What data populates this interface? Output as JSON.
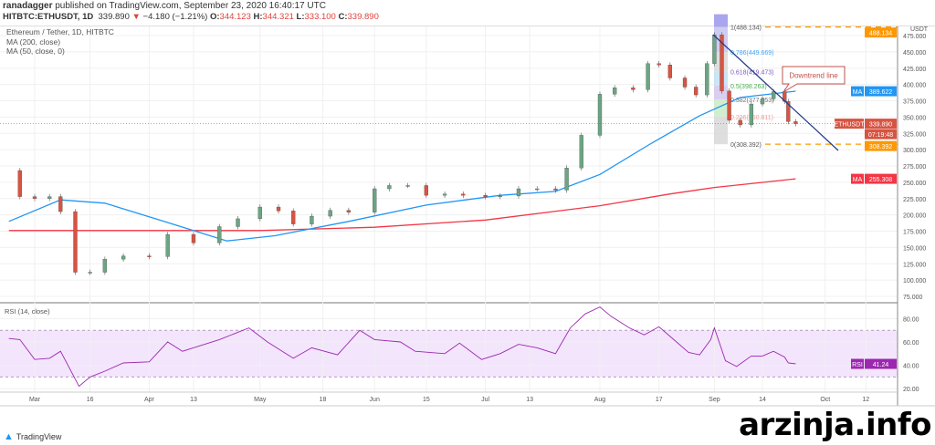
{
  "header": {
    "author": "ranadagger",
    "published_text": "published on TradingView.com, September 23, 2020 16:40:17 UTC",
    "symbol": "HITBTC:ETHUSDT, 1D",
    "last": "339.890",
    "change": "−4.180 (−1.21%)",
    "o_label": "O:",
    "o": "344.123",
    "h_label": "H:",
    "h": "344.321",
    "l_label": "L:",
    "l": "333.100",
    "c_label": "C:",
    "c": "339.890"
  },
  "legend": [
    "Ethereum / Tether, 1D, HITBTC",
    "MA (200, close)",
    "MA (50, close, 0)"
  ],
  "rsi_legend": "RSI (14, close)",
  "footer": {
    "brand": "TradingView",
    "watermark": "arzinja.info"
  },
  "colors": {
    "up": "#6ba583",
    "down": "#d75442",
    "ma50": "#2196f3",
    "ma200": "#f23645",
    "rsi": "#9c27b0",
    "fib_dash": "#ff9800",
    "trend": "#1e3a8a"
  },
  "chart_data": [
    {
      "type": "candlestick",
      "title": "Ethereum / Tether, 1D, HITBTC",
      "unit": "USDT",
      "ylim": [
        75,
        500
      ],
      "y_ticks": [
        75,
        100,
        125,
        150,
        175,
        200,
        225,
        250,
        275,
        300,
        325,
        350,
        375,
        400,
        425,
        450,
        475
      ],
      "x_ticks": [
        {
          "label": "Mar",
          "date": "2020-03-01"
        },
        {
          "label": "16",
          "date": "2020-03-16"
        },
        {
          "label": "Apr",
          "date": "2020-04-01"
        },
        {
          "label": "13",
          "date": "2020-04-13"
        },
        {
          "label": "May",
          "date": "2020-05-01"
        },
        {
          "label": "18",
          "date": "2020-05-18"
        },
        {
          "label": "Jun",
          "date": "2020-06-01"
        },
        {
          "label": "15",
          "date": "2020-06-15"
        },
        {
          "label": "Jul",
          "date": "2020-07-01"
        },
        {
          "label": "13",
          "date": "2020-07-13"
        },
        {
          "label": "Aug",
          "date": "2020-08-01"
        },
        {
          "label": "17",
          "date": "2020-08-17"
        },
        {
          "label": "Sep",
          "date": "2020-09-01"
        },
        {
          "label": "14",
          "date": "2020-09-14"
        },
        {
          "label": "Oct",
          "date": "2020-10-01"
        },
        {
          "label": "12",
          "date": "2020-10-12"
        }
      ],
      "close": [
        [
          "2020-02-23",
          268
        ],
        [
          "2020-02-26",
          228
        ],
        [
          "2020-03-01",
          225
        ],
        [
          "2020-03-05",
          228
        ],
        [
          "2020-03-08",
          205
        ],
        [
          "2020-03-12",
          112
        ],
        [
          "2020-03-16",
          112
        ],
        [
          "2020-03-20",
          132
        ],
        [
          "2020-03-25",
          137
        ],
        [
          "2020-04-01",
          136
        ],
        [
          "2020-04-06",
          170
        ],
        [
          "2020-04-13",
          157
        ],
        [
          "2020-04-20",
          182
        ],
        [
          "2020-04-25",
          194
        ],
        [
          "2020-05-01",
          212
        ],
        [
          "2020-05-06",
          206
        ],
        [
          "2020-05-10",
          186
        ],
        [
          "2020-05-15",
          198
        ],
        [
          "2020-05-20",
          207
        ],
        [
          "2020-05-25",
          204
        ],
        [
          "2020-06-01",
          240
        ],
        [
          "2020-06-05",
          245
        ],
        [
          "2020-06-10",
          245
        ],
        [
          "2020-06-15",
          230
        ],
        [
          "2020-06-20",
          232
        ],
        [
          "2020-06-25",
          230
        ],
        [
          "2020-07-01",
          228
        ],
        [
          "2020-07-05",
          229
        ],
        [
          "2020-07-10",
          240
        ],
        [
          "2020-07-15",
          240
        ],
        [
          "2020-07-20",
          238
        ],
        [
          "2020-07-23",
          272
        ],
        [
          "2020-07-27",
          322
        ],
        [
          "2020-08-01",
          385
        ],
        [
          "2020-08-05",
          395
        ],
        [
          "2020-08-10",
          392
        ],
        [
          "2020-08-14",
          432
        ],
        [
          "2020-08-17",
          430
        ],
        [
          "2020-08-20",
          410
        ],
        [
          "2020-08-24",
          396
        ],
        [
          "2020-08-27",
          384
        ],
        [
          "2020-08-30",
          432
        ],
        [
          "2020-09-01",
          476
        ],
        [
          "2020-09-03",
          390
        ],
        [
          "2020-09-05",
          345
        ],
        [
          "2020-09-08",
          338
        ],
        [
          "2020-09-11",
          370
        ],
        [
          "2020-09-14",
          378
        ],
        [
          "2020-09-17",
          389
        ],
        [
          "2020-09-20",
          374
        ],
        [
          "2020-09-21",
          343
        ],
        [
          "2020-09-23",
          339.89
        ]
      ],
      "ma200": [
        [
          "2020-02-23",
          176
        ],
        [
          "2020-04-01",
          176
        ],
        [
          "2020-05-01",
          176
        ],
        [
          "2020-06-01",
          181
        ],
        [
          "2020-07-01",
          192
        ],
        [
          "2020-08-01",
          214
        ],
        [
          "2020-08-20",
          232
        ],
        [
          "2020-09-01",
          242
        ],
        [
          "2020-09-23",
          255.308
        ]
      ],
      "ma50": [
        [
          "2020-02-23",
          190
        ],
        [
          "2020-03-08",
          223
        ],
        [
          "2020-03-20",
          218
        ],
        [
          "2020-04-05",
          190
        ],
        [
          "2020-04-22",
          160
        ],
        [
          "2020-05-05",
          168
        ],
        [
          "2020-05-25",
          190
        ],
        [
          "2020-06-15",
          215
        ],
        [
          "2020-07-05",
          230
        ],
        [
          "2020-07-20",
          236
        ],
        [
          "2020-08-01",
          262
        ],
        [
          "2020-08-15",
          310
        ],
        [
          "2020-08-28",
          352
        ],
        [
          "2020-09-08",
          380
        ],
        [
          "2020-09-23",
          389.622
        ]
      ],
      "price_labels": [
        {
          "name": "ETHUSDT",
          "value": "339.890",
          "countdown": "07:19:48"
        },
        {
          "name": "MA",
          "value": "389.622"
        },
        {
          "name": "MA",
          "value": "255.308"
        },
        {
          "value": "488.134"
        },
        {
          "value": "308.392"
        }
      ],
      "fibonacci": [
        {
          "ratio": "1",
          "value": "488.134"
        },
        {
          "ratio": "0.786",
          "value": "449.669"
        },
        {
          "ratio": "0.618",
          "value": "419.473"
        },
        {
          "ratio": "0.5",
          "value": "398.263"
        },
        {
          "ratio": "0.382",
          "value": "377.053"
        },
        {
          "ratio": "0.236",
          "value": "350.811"
        },
        {
          "ratio": "0",
          "value": "308.392"
        }
      ],
      "annotations": [
        "Downtrend line"
      ]
    },
    {
      "type": "line",
      "title": "RSI (14, close)",
      "ylim": [
        20,
        90
      ],
      "y_ticks": [
        20,
        40,
        60,
        80
      ],
      "band": [
        30,
        70
      ],
      "current": "41.24",
      "current_label": "RSI",
      "values": [
        [
          "2020-02-23",
          63
        ],
        [
          "2020-02-26",
          62
        ],
        [
          "2020-03-01",
          45
        ],
        [
          "2020-03-05",
          46
        ],
        [
          "2020-03-08",
          52
        ],
        [
          "2020-03-10",
          40
        ],
        [
          "2020-03-13",
          22
        ],
        [
          "2020-03-16",
          30
        ],
        [
          "2020-03-20",
          35
        ],
        [
          "2020-03-25",
          42
        ],
        [
          "2020-04-01",
          43
        ],
        [
          "2020-04-06",
          60
        ],
        [
          "2020-04-10",
          52
        ],
        [
          "2020-04-16",
          58
        ],
        [
          "2020-04-20",
          62
        ],
        [
          "2020-04-28",
          72
        ],
        [
          "2020-05-03",
          60
        ],
        [
          "2020-05-10",
          46
        ],
        [
          "2020-05-15",
          55
        ],
        [
          "2020-05-22",
          49
        ],
        [
          "2020-05-28",
          70
        ],
        [
          "2020-06-01",
          62
        ],
        [
          "2020-06-08",
          60
        ],
        [
          "2020-06-12",
          52
        ],
        [
          "2020-06-20",
          50
        ],
        [
          "2020-06-24",
          59
        ],
        [
          "2020-06-30",
          45
        ],
        [
          "2020-07-05",
          50
        ],
        [
          "2020-07-10",
          58
        ],
        [
          "2020-07-15",
          55
        ],
        [
          "2020-07-20",
          50
        ],
        [
          "2020-07-24",
          72
        ],
        [
          "2020-07-28",
          84
        ],
        [
          "2020-08-01",
          90
        ],
        [
          "2020-08-04",
          82
        ],
        [
          "2020-08-09",
          72
        ],
        [
          "2020-08-13",
          66
        ],
        [
          "2020-08-17",
          73
        ],
        [
          "2020-08-21",
          62
        ],
        [
          "2020-08-25",
          51
        ],
        [
          "2020-08-28",
          49
        ],
        [
          "2020-08-31",
          62
        ],
        [
          "2020-09-01",
          72
        ],
        [
          "2020-09-04",
          44
        ],
        [
          "2020-09-07",
          39
        ],
        [
          "2020-09-11",
          48
        ],
        [
          "2020-09-14",
          48
        ],
        [
          "2020-09-17",
          52
        ],
        [
          "2020-09-20",
          47
        ],
        [
          "2020-09-21",
          42
        ],
        [
          "2020-09-23",
          41.24
        ]
      ]
    }
  ]
}
